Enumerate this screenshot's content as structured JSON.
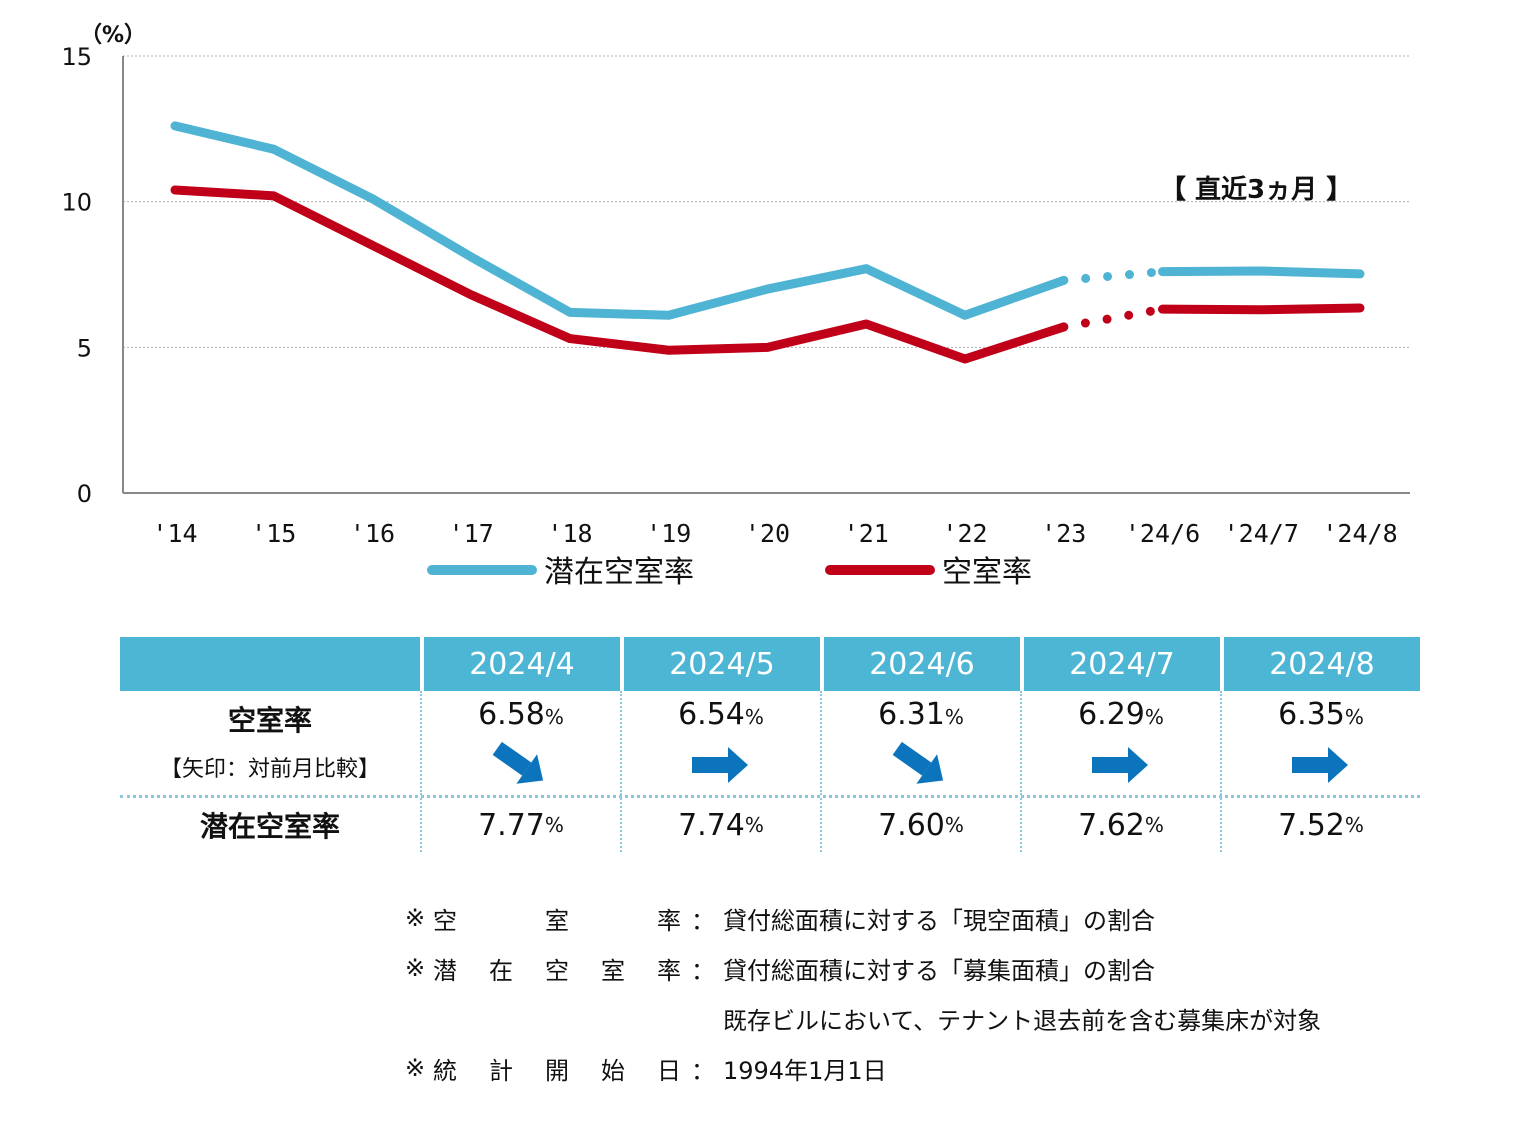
{
  "chart_data": {
    "type": "line",
    "unit_label": "（%）",
    "categories": [
      "'14",
      "'15",
      "'16",
      "'17",
      "'18",
      "'19",
      "'20",
      "'21",
      "'22",
      "'23",
      "'24/6",
      "'24/7",
      "'24/8"
    ],
    "ylim": [
      0,
      15
    ],
    "yticks": [
      "0",
      "5",
      "10",
      "15"
    ],
    "grid": true,
    "annotation": "【 直近3ヵ月 】",
    "legend_position": "bottom",
    "series": [
      {
        "name": "潜在空室率",
        "color": "#4fb3d4",
        "values": [
          12.6,
          11.8,
          10.1,
          8.1,
          6.2,
          6.1,
          7.0,
          7.7,
          6.1,
          7.3,
          7.6,
          7.62,
          7.52
        ]
      },
      {
        "name": "空室率",
        "color": "#c00018",
        "values": [
          10.4,
          10.2,
          8.5,
          6.8,
          5.3,
          4.9,
          5.0,
          5.8,
          4.6,
          5.7,
          6.31,
          6.29,
          6.35
        ]
      }
    ]
  },
  "table": {
    "months": [
      "2024/4",
      "2024/5",
      "2024/6",
      "2024/7",
      "2024/8"
    ],
    "vacancy_label": "空室率",
    "vacancy_sublabel": "【矢印：対前月比較】",
    "vacancy": [
      "6.58",
      "6.54",
      "6.31",
      "6.29",
      "6.35"
    ],
    "arrows": [
      "down",
      "flat",
      "down",
      "flat",
      "flat"
    ],
    "potential_label": "潜在空室率",
    "potential": [
      "7.77",
      "7.74",
      "7.60",
      "7.62",
      "7.52"
    ],
    "pct": "%",
    "header_color": "#4db6d5",
    "arrow_color": "#0b74bd"
  },
  "notes": {
    "mark": "※",
    "colon": "：",
    "rows": [
      {
        "term": [
          "空",
          "室",
          "率"
        ],
        "desc": "貸付総面積に対する「現空面積」の割合"
      },
      {
        "term": [
          "潜",
          "在",
          "空",
          "室",
          "率"
        ],
        "desc": "貸付総面積に対する「募集面積」の割合"
      },
      {
        "term": [
          "統",
          "計",
          "開",
          "始",
          "日"
        ],
        "desc": "1994年1月1日"
      }
    ],
    "extra": "既存ビルにおいて、テナント退去前を含む募集床が対象"
  }
}
